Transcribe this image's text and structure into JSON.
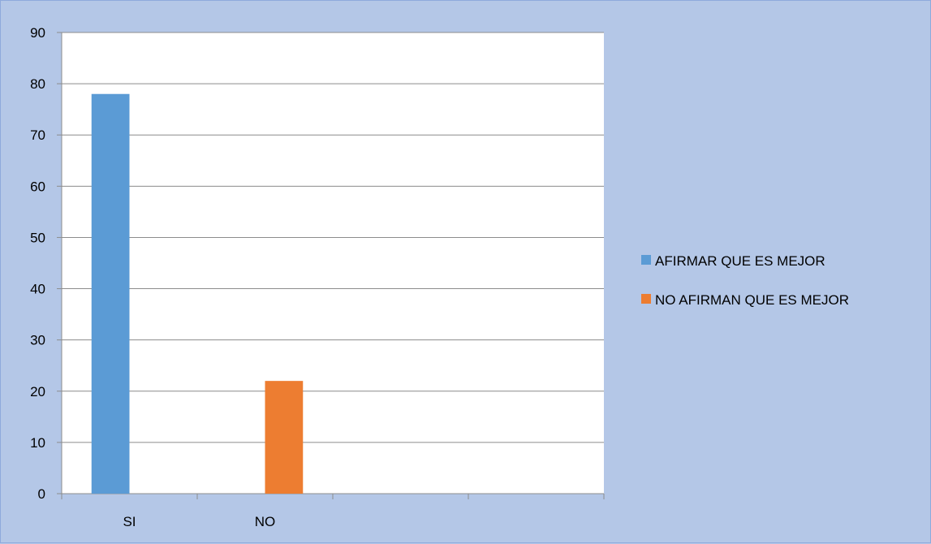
{
  "chart_data": {
    "type": "bar",
    "categories": [
      "SI",
      "NO",
      "",
      ""
    ],
    "series": [
      {
        "name": "AFIRMAR QUE ES MEJOR",
        "color": "#5b9bd5",
        "values": [
          78,
          0,
          0,
          0
        ]
      },
      {
        "name": "NO AFIRMAN QUE ES MEJOR",
        "color": "#ed7d31",
        "values": [
          0,
          22,
          0,
          0
        ]
      }
    ],
    "ylim": [
      0,
      90
    ],
    "yticks": [
      0,
      10,
      20,
      30,
      40,
      50,
      60,
      70,
      80,
      90
    ],
    "grid": true,
    "legend_position": "right",
    "plot_background": "#ffffff",
    "chart_background": "#b4c7e7"
  }
}
